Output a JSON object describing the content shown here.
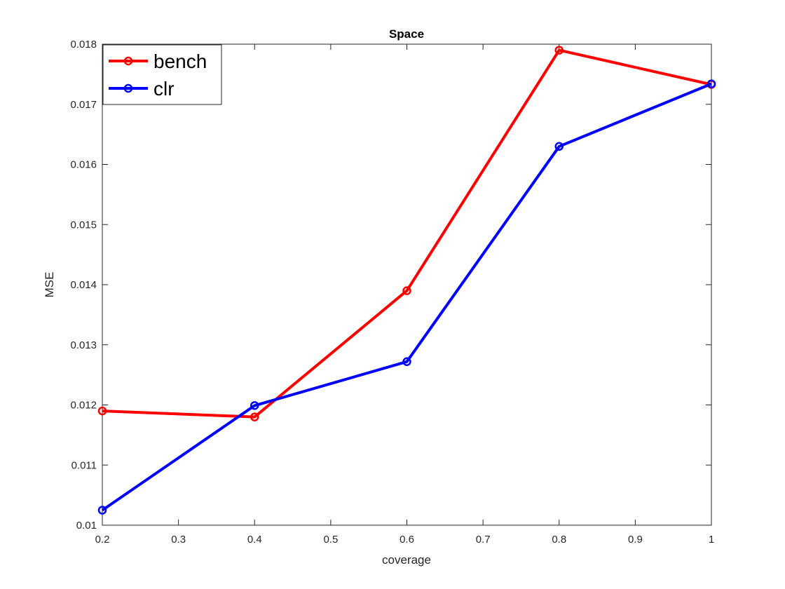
{
  "chart_data": {
    "type": "line",
    "title": "Space",
    "xlabel": "coverage",
    "ylabel": "MSE",
    "xlim": [
      0.2,
      1.0
    ],
    "ylim": [
      0.01,
      0.018
    ],
    "xticks": [
      "0.2",
      "0.3",
      "0.4",
      "0.5",
      "0.6",
      "0.7",
      "0.8",
      "0.9",
      "1"
    ],
    "yticks": [
      "0.01",
      "0.011",
      "0.012",
      "0.013",
      "0.014",
      "0.015",
      "0.016",
      "0.017",
      "0.018"
    ],
    "grid": false,
    "legend_position": "top-left",
    "x": [
      0.2,
      0.4,
      0.6,
      0.8,
      1.0
    ],
    "series": [
      {
        "name": "bench",
        "color": "#ff0000",
        "values": [
          0.0119,
          0.0118,
          0.0139,
          0.0179,
          0.01733
        ]
      },
      {
        "name": "clr",
        "color": "#0000ff",
        "values": [
          0.01025,
          0.01199,
          0.01272,
          0.0163,
          0.01734
        ]
      }
    ]
  }
}
